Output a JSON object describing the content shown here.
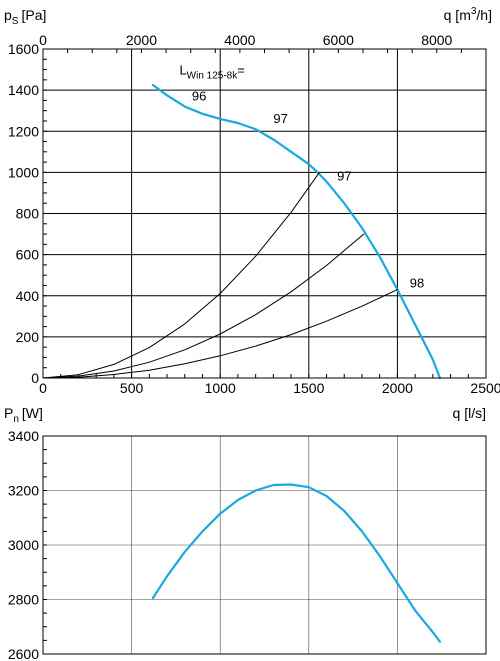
{
  "colors": {
    "curve": "#1ba7e1",
    "axis": "#000000",
    "grid": "#000000",
    "system_line": "#000000"
  },
  "chart_data": [
    {
      "type": "line",
      "title": "",
      "y_label": {
        "main": "p",
        "sub": "S",
        "unit": "[Pa]"
      },
      "top_axis_label": {
        "main": "q [m",
        "sup": "3",
        "tail": "/h]"
      },
      "x_label": "q [l/s]",
      "xlim": [
        0,
        2500
      ],
      "ylim": [
        0,
        1600
      ],
      "x_ticks": [
        0,
        500,
        1000,
        1500,
        2000,
        2500
      ],
      "y_ticks": [
        0,
        200,
        400,
        600,
        800,
        1000,
        1200,
        1400,
        1600
      ],
      "top_xlim": [
        0,
        9000
      ],
      "top_ticks": [
        0,
        2000,
        4000,
        6000,
        8000
      ],
      "grid": true,
      "series": [
        {
          "name": "",
          "role": "fan_curve",
          "x": [
            620,
            700,
            800,
            900,
            1000,
            1100,
            1200,
            1300,
            1400,
            1500,
            1550,
            1600,
            1700,
            1800,
            1900,
            2000,
            2100,
            2200,
            2240
          ],
          "y": [
            1425,
            1375,
            1320,
            1285,
            1260,
            1240,
            1210,
            1160,
            1100,
            1040,
            1000,
            955,
            850,
            730,
            590,
            430,
            260,
            90,
            0
          ]
        },
        {
          "role": "system_curve",
          "x": [
            0,
            200,
            400,
            600,
            800,
            1000,
            1200,
            1400,
            1560
          ],
          "y": [
            0,
            16,
            66,
            148,
            263,
            411,
            592,
            806,
            1000
          ]
        },
        {
          "role": "system_curve",
          "x": [
            0,
            200,
            400,
            600,
            800,
            1000,
            1200,
            1400,
            1600,
            1810
          ],
          "y": [
            0,
            9,
            34,
            77,
            137,
            214,
            308,
            419,
            547,
            700
          ]
        },
        {
          "role": "system_curve",
          "x": [
            0,
            200,
            400,
            600,
            800,
            1000,
            1200,
            1400,
            1600,
            1800,
            2000
          ],
          "y": [
            0,
            4,
            17,
            38,
            69,
            108,
            155,
            211,
            276,
            349,
            430
          ]
        }
      ],
      "annotations": [
        {
          "text": "L",
          "sub": "Win 125-8k",
          "tail": "=",
          "x": 770,
          "y": 1475
        },
        {
          "text": "96",
          "x": 840,
          "y": 1350
        },
        {
          "text": "97",
          "x": 1300,
          "y": 1240
        },
        {
          "text": "97",
          "x": 1660,
          "y": 960
        },
        {
          "text": "98",
          "x": 2070,
          "y": 440
        }
      ]
    },
    {
      "type": "line",
      "title": "",
      "y_label": {
        "main": "P",
        "sub": "n",
        "unit": "[W]"
      },
      "xlim": [
        0,
        2500
      ],
      "ylim": [
        2600,
        3400
      ],
      "y_ticks": [
        2600,
        2800,
        3000,
        3200,
        3400
      ],
      "x_gridlines": [
        500,
        1000,
        1500,
        2000
      ],
      "grid": true,
      "series": [
        {
          "name": "",
          "role": "power_curve",
          "x": [
            620,
            700,
            800,
            900,
            1000,
            1100,
            1200,
            1300,
            1400,
            1500,
            1600,
            1700,
            1800,
            1900,
            2000,
            2100,
            2200,
            2240
          ],
          "y": [
            2805,
            2885,
            2975,
            3050,
            3115,
            3165,
            3200,
            3220,
            3222,
            3212,
            3180,
            3125,
            3050,
            2960,
            2860,
            2760,
            2680,
            2645
          ]
        }
      ]
    }
  ]
}
